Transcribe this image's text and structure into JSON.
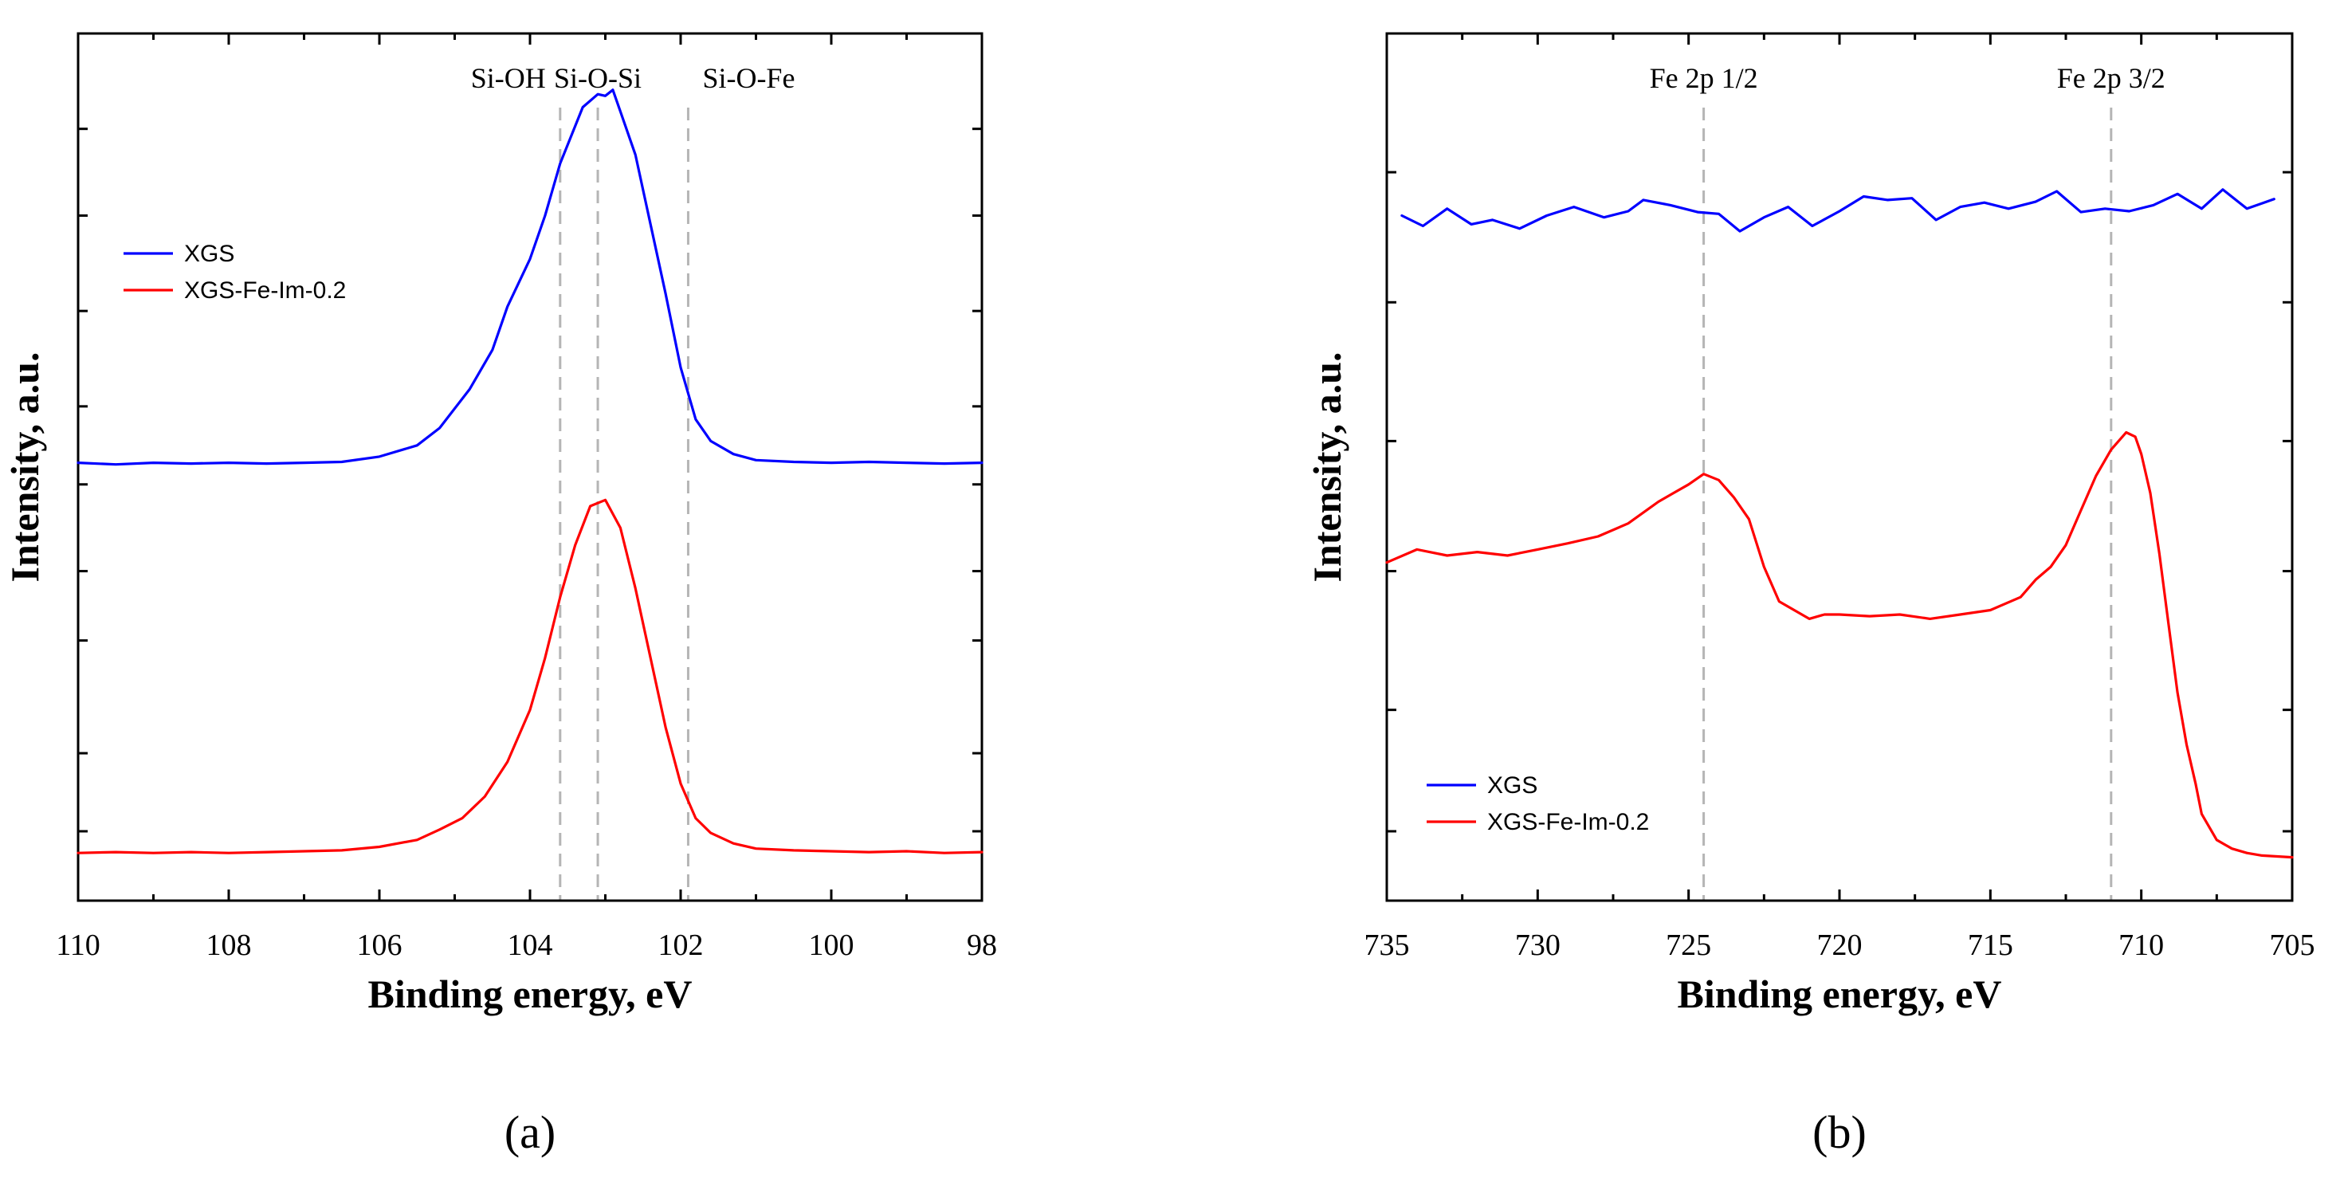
{
  "chart_data": [
    {
      "type": "line",
      "panel_label": "(a)",
      "xlabel": "Binding energy, eV",
      "ylabel": "Intensity, a.u.",
      "xlim": [
        110,
        98
      ],
      "ylim": [
        0,
        100
      ],
      "x_reversed": true,
      "xticks": [
        110,
        108,
        106,
        104,
        102,
        100,
        98
      ],
      "y_minor_ticks": [
        8,
        17,
        30,
        38,
        48,
        57,
        68,
        79,
        89
      ],
      "grid": false,
      "legend": {
        "position": "top-left",
        "entries": [
          "XGS",
          "XGS-Fe-Im-0.2"
        ]
      },
      "annotations": [
        {
          "text": "Si-OH",
          "x": 103.6
        },
        {
          "text": "Si-O-Si",
          "x": 103.1
        },
        {
          "text": "Si-O-Fe",
          "x": 101.9
        }
      ],
      "series": [
        {
          "name": "XGS",
          "color": "#0000ff",
          "x": [
            110.0,
            109.5,
            109.0,
            108.5,
            108.0,
            107.5,
            107.0,
            106.5,
            106.0,
            105.5,
            105.2,
            104.8,
            104.5,
            104.3,
            104.0,
            103.8,
            103.6,
            103.3,
            103.1,
            103.0,
            102.9,
            102.8,
            102.6,
            102.4,
            102.2,
            102.0,
            101.8,
            101.6,
            101.3,
            101.0,
            100.5,
            100.0,
            99.5,
            99.0,
            98.5,
            98.0
          ],
          "values": [
            50.5,
            50.3,
            50.5,
            50.4,
            50.5,
            50.4,
            50.5,
            50.6,
            51.2,
            52.5,
            54.5,
            59.0,
            63.5,
            68.5,
            74.0,
            79.0,
            85.0,
            91.5,
            93.0,
            92.8,
            93.5,
            91.0,
            86.0,
            78.0,
            70.0,
            61.5,
            55.5,
            53.0,
            51.5,
            50.8,
            50.6,
            50.5,
            50.6,
            50.5,
            50.4,
            50.5
          ]
        },
        {
          "name": "XGS-Fe-Im-0.2",
          "color": "#ff0000",
          "x": [
            110.0,
            109.5,
            109.0,
            108.5,
            108.0,
            107.5,
            107.0,
            106.5,
            106.0,
            105.5,
            105.2,
            104.9,
            104.6,
            104.3,
            104.0,
            103.8,
            103.6,
            103.4,
            103.2,
            103.0,
            102.8,
            102.6,
            102.4,
            102.2,
            102.0,
            101.8,
            101.6,
            101.3,
            101.0,
            100.5,
            100.0,
            99.5,
            99.0,
            98.5,
            98.0
          ],
          "values": [
            5.5,
            5.6,
            5.5,
            5.6,
            5.5,
            5.6,
            5.7,
            5.8,
            6.2,
            7.0,
            8.2,
            9.5,
            12.0,
            16.0,
            22.0,
            28.0,
            35.0,
            41.0,
            45.5,
            46.2,
            43.0,
            36.0,
            28.0,
            20.0,
            13.5,
            9.5,
            7.8,
            6.6,
            6.0,
            5.8,
            5.7,
            5.6,
            5.7,
            5.5,
            5.6
          ]
        }
      ]
    },
    {
      "type": "line",
      "panel_label": "(b)",
      "xlabel": "Binding energy, eV",
      "ylabel": "Intensity, a.u.",
      "xlim": [
        735,
        705
      ],
      "ylim": [
        0,
        100
      ],
      "x_reversed": true,
      "xticks": [
        735,
        730,
        725,
        720,
        715,
        710,
        705
      ],
      "y_minor_ticks": [
        8,
        22,
        38,
        53,
        69,
        84
      ],
      "grid": false,
      "legend": {
        "position": "bottom-left",
        "entries": [
          "XGS",
          "XGS-Fe-Im-0.2"
        ]
      },
      "annotations": [
        {
          "text": "Fe 2p 1/2",
          "x": 724.5
        },
        {
          "text": "Fe 2p 3/2",
          "x": 711.0
        }
      ],
      "series": [
        {
          "name": "XGS",
          "color": "#0000ff",
          "x": [
            734.5,
            733.8,
            733.0,
            732.2,
            731.5,
            730.6,
            729.7,
            728.8,
            727.8,
            727.0,
            726.5,
            725.6,
            724.7,
            724.0,
            723.3,
            722.5,
            721.7,
            720.9,
            720.0,
            719.2,
            718.4,
            717.6,
            716.8,
            716.0,
            715.2,
            714.4,
            713.5,
            712.8,
            712.0,
            711.2,
            710.4,
            709.6,
            708.8,
            708.0,
            707.3,
            706.5,
            705.6
          ],
          "values": [
            79.0,
            77.8,
            79.8,
            78.0,
            78.5,
            77.5,
            79.0,
            80.0,
            78.8,
            79.5,
            80.8,
            80.2,
            79.4,
            79.2,
            77.2,
            78.8,
            80.0,
            77.8,
            79.5,
            81.2,
            80.8,
            81.0,
            78.5,
            80.0,
            80.5,
            79.8,
            80.6,
            81.8,
            79.4,
            79.8,
            79.5,
            80.2,
            81.5,
            79.8,
            82.0,
            79.8,
            80.9
          ]
        },
        {
          "name": "XGS-Fe-Im-0.2",
          "color": "#ff0000",
          "x": [
            735.0,
            734.0,
            733.0,
            732.0,
            731.0,
            730.0,
            729.0,
            728.0,
            727.0,
            726.0,
            725.5,
            725.0,
            724.5,
            724.0,
            723.5,
            723.0,
            722.5,
            722.0,
            721.5,
            721.0,
            720.5,
            720.0,
            719.0,
            718.0,
            717.0,
            716.0,
            715.0,
            714.0,
            713.5,
            713.0,
            712.5,
            712.0,
            711.5,
            711.0,
            710.5,
            710.2,
            710.0,
            709.7,
            709.4,
            709.1,
            708.8,
            708.5,
            708.2,
            708.0,
            707.5,
            707.0,
            706.5,
            706.0,
            705.0
          ],
          "values": [
            39.0,
            40.5,
            39.8,
            40.2,
            39.8,
            40.5,
            41.2,
            42.0,
            43.5,
            46.0,
            47.0,
            48.0,
            49.2,
            48.5,
            46.5,
            44.0,
            38.5,
            34.5,
            33.5,
            32.5,
            33.0,
            33.0,
            32.8,
            33.0,
            32.5,
            33.0,
            33.5,
            35.0,
            37.0,
            38.5,
            41.0,
            45.0,
            49.0,
            52.0,
            54.0,
            53.5,
            51.5,
            47.0,
            40.0,
            32.0,
            24.0,
            18.0,
            13.5,
            10.0,
            7.0,
            6.0,
            5.5,
            5.2,
            5.0
          ]
        }
      ]
    }
  ]
}
